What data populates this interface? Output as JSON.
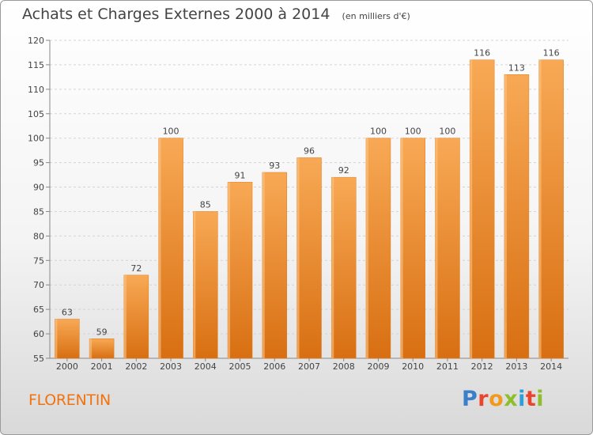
{
  "chart_data": {
    "type": "bar",
    "title": "Achats et Charges Externes 2000 à 2014",
    "subtitle": "(en milliers d'€)",
    "categories": [
      "2000",
      "2001",
      "2002",
      "2003",
      "2004",
      "2005",
      "2006",
      "2007",
      "2008",
      "2009",
      "2010",
      "2011",
      "2012",
      "2013",
      "2014"
    ],
    "values": [
      63,
      59,
      72,
      100,
      85,
      91,
      93,
      96,
      92,
      100,
      100,
      100,
      116,
      113,
      116
    ],
    "data_labels": [
      "63",
      "59",
      "72",
      "100",
      "85",
      "91",
      "93",
      "96",
      "92",
      "100",
      "100",
      "100",
      "116",
      "113",
      "116"
    ],
    "ylim": [
      55,
      120
    ],
    "yticks": [
      55,
      60,
      65,
      70,
      75,
      80,
      85,
      90,
      95,
      100,
      105,
      110,
      115,
      120
    ],
    "grid": true,
    "bar_color": "#f0891f",
    "bar_color_light": "#f8a955",
    "bar_color_dark": "#d86f12"
  },
  "footer": {
    "commune": "FLORENTIN",
    "logo_letters": [
      {
        "ch": "P",
        "color": "#3b7fc9"
      },
      {
        "ch": "r",
        "color": "#e8452c"
      },
      {
        "ch": "o",
        "color": "#f29a1d"
      },
      {
        "ch": "x",
        "color": "#8cbf2a"
      },
      {
        "ch": "i",
        "color": "#2f9fd8"
      },
      {
        "ch": "t",
        "color": "#e8452c"
      },
      {
        "ch": "i",
        "color": "#8cbf2a"
      }
    ]
  }
}
